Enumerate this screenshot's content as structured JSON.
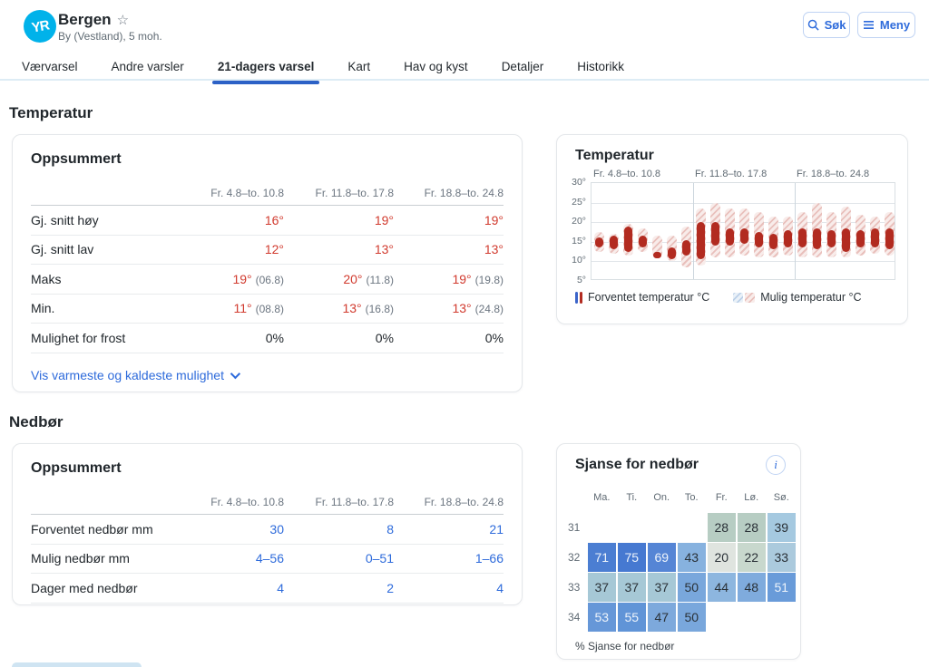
{
  "header": {
    "logo_text": "YR",
    "title": "Bergen",
    "favorite_icon": "☆",
    "subtitle": "By (Vestland), 5 moh.",
    "search_button": "Søk",
    "menu_button": "Meny"
  },
  "tabs": [
    {
      "label": "Værvarsel",
      "active": false
    },
    {
      "label": "Andre varsler",
      "active": false
    },
    {
      "label": "21-dagers varsel",
      "active": true
    },
    {
      "label": "Kart",
      "active": false
    },
    {
      "label": "Hav og kyst",
      "active": false
    },
    {
      "label": "Detaljer",
      "active": false
    },
    {
      "label": "Historikk",
      "active": false
    }
  ],
  "temperature_section": {
    "heading": "Temperatur",
    "summary_card": {
      "title": "Oppsummert",
      "columns": [
        "Fr. 4.8–to. 10.8",
        "Fr. 11.8–to. 17.8",
        "Fr. 18.8–to. 24.8"
      ],
      "rows": [
        {
          "label": "Gj. snitt høy",
          "color": "red",
          "cells": [
            {
              "v": "16°"
            },
            {
              "v": "19°"
            },
            {
              "v": "19°"
            }
          ]
        },
        {
          "label": "Gj. snitt lav",
          "color": "red",
          "cells": [
            {
              "v": "12°"
            },
            {
              "v": "13°"
            },
            {
              "v": "13°"
            }
          ]
        },
        {
          "label": "Maks",
          "color": "red",
          "cells": [
            {
              "v": "19°",
              "note": "(06.8)"
            },
            {
              "v": "20°",
              "note": "(11.8)"
            },
            {
              "v": "19°",
              "note": "(19.8)"
            }
          ]
        },
        {
          "label": "Min.",
          "color": "red",
          "cells": [
            {
              "v": "11°",
              "note": "(08.8)"
            },
            {
              "v": "13°",
              "note": "(16.8)"
            },
            {
              "v": "13°",
              "note": "(24.8)"
            }
          ]
        },
        {
          "label": "Mulighet for frost",
          "color": "dark",
          "cells": [
            {
              "v": "0%"
            },
            {
              "v": "0%"
            },
            {
              "v": "0%"
            }
          ]
        }
      ],
      "expand_link": "Vis varmeste og kaldeste mulighet"
    },
    "chart_card": {
      "title": "Temperatur"
    }
  },
  "precipitation_section": {
    "heading": "Nedbør",
    "summary_card": {
      "title": "Oppsummert",
      "columns": [
        "Fr. 4.8–to. 10.8",
        "Fr. 11.8–to. 17.8",
        "Fr. 18.8–to. 24.8"
      ],
      "rows": [
        {
          "label": "Forventet nedbør mm",
          "color": "blue",
          "cells": [
            {
              "v": "30"
            },
            {
              "v": "8"
            },
            {
              "v": "21"
            }
          ]
        },
        {
          "label": "Mulig nedbør mm",
          "color": "blue",
          "cells": [
            {
              "v": "4–56"
            },
            {
              "v": "0–51"
            },
            {
              "v": "1–66"
            }
          ]
        },
        {
          "label": "Dager med nedbør",
          "color": "blue",
          "cells": [
            {
              "v": "4"
            },
            {
              "v": "2"
            },
            {
              "v": "4"
            }
          ]
        }
      ]
    },
    "chance_card": {
      "title": "Sjanse for nedbør",
      "info_icon": "i",
      "footer": "% Sjanse for nedbør"
    }
  },
  "chart_data": [
    {
      "type": "range-bar",
      "title": "Temperatur",
      "ylim": [
        5,
        30
      ],
      "yticks": [
        30,
        25,
        20,
        15,
        10,
        5
      ],
      "ytick_suffix": "°",
      "week_labels": [
        "Fr. 4.8–to. 10.8",
        "Fr. 11.8–to. 17.8",
        "Fr. 18.8–to. 24.8"
      ],
      "legend": [
        {
          "label": "Forventet temperatur °C",
          "style": "solid-bars"
        },
        {
          "label": "Mulig temperatur °C",
          "style": "hatched"
        }
      ],
      "series": [
        {
          "name": "Forventet temperatur °C",
          "kind": "expected",
          "ranges": [
            [
              13.5,
              16
            ],
            [
              13,
              16.5
            ],
            [
              12.5,
              19
            ],
            [
              13.5,
              16.5
            ],
            [
              11.5,
              12.5
            ],
            [
              10.5,
              13.5
            ],
            [
              11.5,
              15.5
            ],
            [
              10.5,
              20
            ],
            [
              14,
              20
            ],
            [
              14,
              18.5
            ],
            [
              14.5,
              18.5
            ],
            [
              13.5,
              17.5
            ],
            [
              13,
              17
            ],
            [
              13.5,
              18
            ],
            [
              13.5,
              18.5
            ],
            [
              13,
              18.5
            ],
            [
              13.5,
              18
            ],
            [
              12.5,
              18.5
            ],
            [
              13.5,
              18
            ],
            [
              13.5,
              18.5
            ],
            [
              13,
              18.5
            ]
          ]
        },
        {
          "name": "Mulig temperatur °C",
          "kind": "possible",
          "ranges": [
            [
              12.5,
              17.5
            ],
            [
              12,
              17
            ],
            [
              11.5,
              19.5
            ],
            [
              12.5,
              18.5
            ],
            [
              11,
              16.5
            ],
            [
              10,
              16.5
            ],
            [
              8.5,
              19
            ],
            [
              9,
              23.5
            ],
            [
              11,
              25
            ],
            [
              11,
              23.5
            ],
            [
              11.5,
              23.5
            ],
            [
              11,
              22.5
            ],
            [
              11,
              21.5
            ],
            [
              11.5,
              21.5
            ],
            [
              11,
              22.5
            ],
            [
              11,
              25
            ],
            [
              11,
              22.5
            ],
            [
              11,
              24
            ],
            [
              11.5,
              22
            ],
            [
              12,
              21.5
            ],
            [
              11.5,
              22.5
            ]
          ]
        }
      ]
    },
    {
      "type": "heatmap",
      "title": "Sjanse for nedbør",
      "unit": "% Sjanse for nedbør",
      "columns": [
        "Ma.",
        "Ti.",
        "On.",
        "To.",
        "Fr.",
        "Lø.",
        "Sø."
      ],
      "rows": [
        "31",
        "32",
        "33",
        "34"
      ],
      "values": [
        [
          null,
          null,
          null,
          null,
          28,
          28,
          39
        ],
        [
          71,
          75,
          69,
          43,
          20,
          22,
          33
        ],
        [
          37,
          37,
          37,
          50,
          44,
          48,
          51
        ],
        [
          53,
          55,
          47,
          50,
          null,
          null,
          null
        ]
      ],
      "cell_colors": [
        [
          null,
          null,
          null,
          null,
          "#b7cdc3",
          "#b7cdc3",
          "#a5c9e0"
        ],
        [
          "#4b7ed2",
          "#4679d1",
          "#5585d5",
          "#87b2df",
          "#dfe4df",
          "#c8d8cd",
          "#abcadd"
        ],
        [
          "#a6c8d6",
          "#a6c8d6",
          "#a6c8d6",
          "#79a7dc",
          "#8db6df",
          "#7fabdd",
          "#699bd9"
        ],
        [
          "#6697d8",
          "#6094d7",
          "#7da9dc",
          "#79a7dc",
          null,
          null,
          null
        ]
      ],
      "light_text_min": 51
    }
  ],
  "colors": {
    "accent_blue": "#2e6bdb",
    "tab_underline": "#2c61c6",
    "logo_blue": "#00b2ea",
    "value_red": "#d13a2e",
    "bar_red": "#b22b20",
    "hatch_pink": "#e9c0bc",
    "secondary_text": "#5f6a73"
  }
}
